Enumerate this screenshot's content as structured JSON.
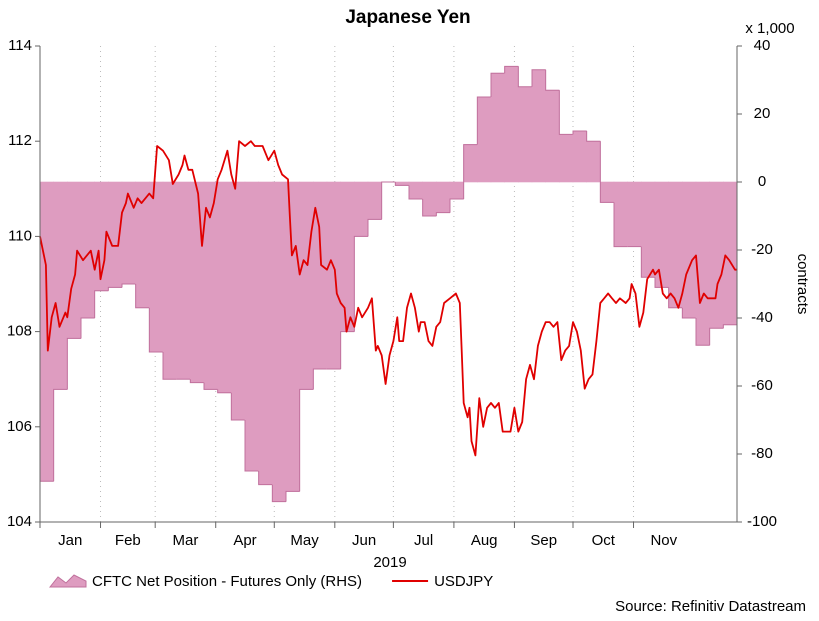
{
  "chart_data": {
    "type": "line",
    "title": "Japanese Yen",
    "xlabel": "2019",
    "y2label": "contracts",
    "y2unit": "x 1,000",
    "source": "Source: Refinitiv Datastream",
    "xlim": [
      0,
      357
    ],
    "xticks": [
      {
        "value": 0,
        "label": "Jan"
      },
      {
        "value": 31,
        "label": "Feb"
      },
      {
        "value": 59,
        "label": "Mar"
      },
      {
        "value": 90,
        "label": "Apr"
      },
      {
        "value": 120,
        "label": "May"
      },
      {
        "value": 151,
        "label": "Jun"
      },
      {
        "value": 181,
        "label": "Jul"
      },
      {
        "value": 212,
        "label": "Aug"
      },
      {
        "value": 243,
        "label": "Sep"
      },
      {
        "value": 273,
        "label": "Oct"
      },
      {
        "value": 304,
        "label": "Nov"
      }
    ],
    "ylim": [
      104,
      114
    ],
    "yticks": [
      104,
      106,
      108,
      110,
      112,
      114
    ],
    "y2lim": [
      -100,
      40
    ],
    "y2ticks": [
      -100,
      -80,
      -60,
      -40,
      -20,
      0,
      20,
      40
    ],
    "grid": true,
    "series": [
      {
        "name": "CFTC Net Position - Futures Only (RHS)",
        "type": "area",
        "axis": "y2",
        "color": "#de9cc0",
        "edge": "#c0709c",
        "x": [
          0,
          7,
          14,
          21,
          28,
          35,
          42,
          49,
          56,
          63,
          70,
          77,
          84,
          91,
          98,
          105,
          112,
          119,
          126,
          133,
          140,
          147,
          154,
          161,
          168,
          175,
          182,
          189,
          196,
          203,
          210,
          217,
          224,
          231,
          238,
          245,
          252,
          259,
          266,
          273,
          280,
          287,
          294,
          301,
          308,
          315,
          322,
          329,
          336,
          343,
          350
        ],
        "values": [
          -88,
          -61,
          -46,
          -40,
          -32,
          -31,
          -30,
          -37,
          -50,
          -58,
          -58,
          -59,
          -61,
          -62,
          -70,
          -85,
          -89,
          -94,
          -91,
          -61,
          -55,
          -55,
          -44,
          -16,
          -11,
          0,
          -1,
          -5,
          -10,
          -9,
          -5,
          11,
          25,
          32,
          34,
          28,
          33,
          27,
          14,
          15,
          12,
          -6,
          -19,
          -19,
          -28,
          -31,
          -37,
          -40,
          -48,
          -43,
          -42
        ]
      },
      {
        "name": "USDJPY",
        "type": "line",
        "color": "#e00000",
        "x": [
          0,
          3,
          4,
          6,
          8,
          10,
          13,
          14,
          16,
          18,
          19,
          22,
          24,
          26,
          28,
          30,
          31,
          33,
          34,
          37,
          40,
          42,
          44,
          45,
          48,
          50,
          52,
          54,
          56,
          58,
          60,
          63,
          66,
          68,
          71,
          73,
          74,
          76,
          78,
          81,
          83,
          85,
          87,
          89,
          91,
          93,
          96,
          98,
          100,
          102,
          105,
          108,
          110,
          114,
          117,
          120,
          122,
          124,
          127,
          128,
          129,
          131,
          133,
          135,
          137,
          139,
          141,
          143,
          144,
          147,
          149,
          151,
          152,
          154,
          156,
          157,
          159,
          161,
          163,
          165,
          168,
          170,
          172,
          173,
          175,
          177,
          179,
          181,
          183,
          184,
          186,
          188,
          190,
          192,
          194,
          195,
          197,
          199,
          201,
          203,
          205,
          207,
          210,
          213,
          215,
          216,
          217,
          219,
          220,
          221,
          223,
          225,
          227,
          229,
          231,
          233,
          235,
          237,
          239,
          241,
          243,
          245,
          247,
          249,
          251,
          253,
          255,
          257,
          259,
          261,
          263,
          265,
          267,
          269,
          271,
          273,
          275,
          277,
          279,
          281,
          283,
          285,
          287,
          289,
          291,
          293,
          295,
          297,
          300,
          302,
          303,
          305,
          307,
          309,
          311,
          314,
          315,
          317,
          319,
          321,
          323,
          325,
          327,
          329,
          331,
          334,
          336,
          338,
          340,
          342,
          344,
          346,
          347,
          349,
          351,
          353,
          356,
          357
        ],
        "values": [
          110.0,
          109.4,
          107.6,
          108.3,
          108.6,
          108.1,
          108.4,
          108.3,
          108.9,
          109.2,
          109.7,
          109.5,
          109.6,
          109.7,
          109.3,
          109.7,
          109.1,
          109.5,
          110.1,
          109.8,
          109.8,
          110.5,
          110.7,
          110.9,
          110.6,
          110.8,
          110.7,
          110.8,
          110.9,
          110.8,
          111.9,
          111.8,
          111.6,
          111.1,
          111.3,
          111.5,
          111.7,
          111.4,
          111.4,
          110.9,
          109.8,
          110.6,
          110.4,
          110.7,
          111.2,
          111.4,
          111.8,
          111.3,
          111.0,
          112.0,
          111.9,
          112.0,
          111.9,
          111.9,
          111.6,
          111.8,
          111.5,
          111.3,
          111.2,
          110.4,
          109.6,
          109.8,
          109.2,
          109.5,
          109.4,
          110.1,
          110.6,
          110.2,
          109.4,
          109.3,
          109.5,
          109.3,
          108.8,
          108.6,
          108.5,
          108.0,
          108.3,
          108.1,
          108.5,
          108.3,
          108.5,
          108.7,
          107.6,
          107.7,
          107.5,
          106.9,
          107.5,
          107.8,
          108.3,
          107.8,
          107.8,
          108.5,
          108.8,
          108.5,
          108.0,
          108.2,
          108.2,
          107.8,
          107.7,
          108.1,
          108.2,
          108.6,
          108.7,
          108.8,
          108.6,
          107.6,
          106.5,
          106.2,
          106.4,
          105.7,
          105.4,
          106.6,
          106.0,
          106.4,
          106.5,
          106.4,
          106.5,
          105.9,
          105.9,
          105.9,
          106.4,
          105.9,
          106.1,
          107.0,
          107.3,
          107.0,
          107.7,
          108.0,
          108.2,
          108.2,
          108.1,
          108.2,
          107.4,
          107.6,
          107.7,
          108.2,
          108.0,
          107.6,
          106.8,
          107.0,
          107.1,
          107.8,
          108.6,
          108.7,
          108.8,
          108.7,
          108.6,
          108.7,
          108.6,
          108.7,
          109.0,
          108.8,
          108.1,
          108.4,
          109.1,
          109.3,
          109.2,
          109.3,
          108.8,
          108.7,
          108.8,
          108.7,
          108.5,
          108.8,
          109.2,
          109.5,
          109.6,
          108.6,
          108.8,
          108.7,
          108.7,
          108.7,
          109.0,
          109.2,
          109.6,
          109.5,
          109.3,
          109.3
        ]
      }
    ]
  }
}
